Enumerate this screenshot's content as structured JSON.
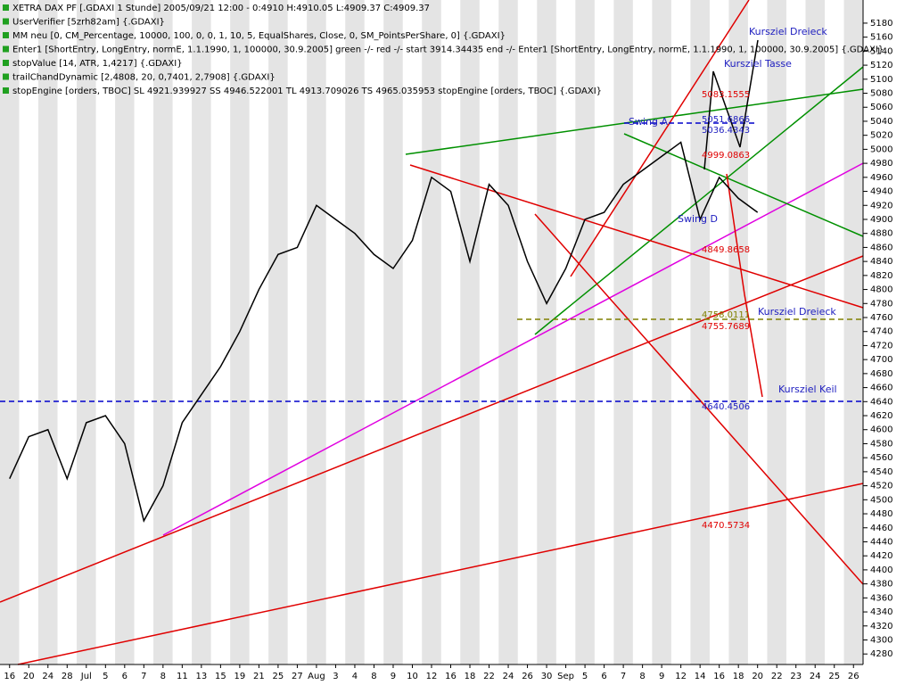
{
  "chart_data": {
    "type": "line",
    "header": [
      "XETRA DAX PF [.GDAXI  1 Stunde] 2005/09/21 12:00 - 0:4910 H:4910.05 L:4909.37 C:4909.37",
      "UserVerifier [5zrh82am] {.GDAXI}",
      "MM neu [0, CM_Percentage, 10000, 100, 0, 0, 1, 10, 5, EqualShares, Close, 0, SM_PointsPerShare, 0] {.GDAXI}",
      "Enter1 [ShortEntry, LongEntry, normE, 1.1.1990, 1, 100000, 30.9.2005] green -/- red -/- start 3914.34435 end -/- Enter1 [ShortEntry, LongEntry, normE, 1.1.1990, 1, 100000, 30.9.2005] {.GDAXI}",
      "stopValue [14, ATR, 1,4217] {.GDAXI}",
      "trailChandDynamic [2,4808, 20, 0,7401, 2,7908] {.GDAXI}",
      "stopEngine [orders, TBOC] SL 4921.939927 SS 4946.522001 TL 4913.709026 TS 4965.035953 stopEngine [orders, TBOC] {.GDAXI}"
    ],
    "categories": [
      "16",
      "20",
      "24",
      "28",
      "Jul",
      "5",
      "6",
      "7",
      "8",
      "11",
      "13",
      "15",
      "19",
      "21",
      "25",
      "27",
      "Aug",
      "3",
      "4",
      "8",
      "9",
      "10",
      "12",
      "16",
      "18",
      "22",
      "24",
      "26",
      "30",
      "Sep",
      "5",
      "6",
      "7",
      "8",
      "9",
      "12",
      "14",
      "16",
      "18",
      "20",
      "22",
      "23",
      "24",
      "25",
      "26"
    ],
    "series": [
      {
        "name": "XETRA DAX PF",
        "color": "#000000",
        "values": [
          4530,
          4590,
          4600,
          4530,
          4610,
          4620,
          4580,
          4470,
          4520,
          4610,
          4650,
          4690,
          4740,
          4800,
          4850,
          4860,
          4920,
          4900,
          4880,
          4850,
          4830,
          4870,
          4960,
          4940,
          4840,
          4950,
          4920,
          4840,
          4780,
          4830,
          4900,
          4910,
          4950,
          4970,
          4990,
          5010,
          4900,
          4960,
          4930,
          4910,
          null,
          null,
          null,
          null,
          null
        ]
      }
    ],
    "ylim": [
      4265,
      5213
    ],
    "yticks": [
      4280,
      4300,
      4320,
      4340,
      4360,
      4380,
      4400,
      4420,
      4440,
      4460,
      4480,
      4500,
      4520,
      4540,
      4560,
      4580,
      4600,
      4620,
      4640,
      4660,
      4680,
      4700,
      4720,
      4740,
      4760,
      4780,
      4800,
      4820,
      4840,
      4860,
      4880,
      4900,
      4920,
      4940,
      4960,
      4980,
      5000,
      5020,
      5040,
      5060,
      5080,
      5100,
      5120,
      5140,
      5160,
      5180
    ],
    "annotations": [
      "Kursziel Dreieck",
      "Kursziel Tasse",
      "Kursziel Dreieck",
      "Kursziel Keil",
      "5083.1555",
      "5051.6866",
      "5036.4343",
      "4999.0863",
      "4758.0111",
      "4755.7689",
      "4640.4506",
      "4470.5734",
      "4849.8658",
      "Swing A",
      "Swing D"
    ]
  }
}
